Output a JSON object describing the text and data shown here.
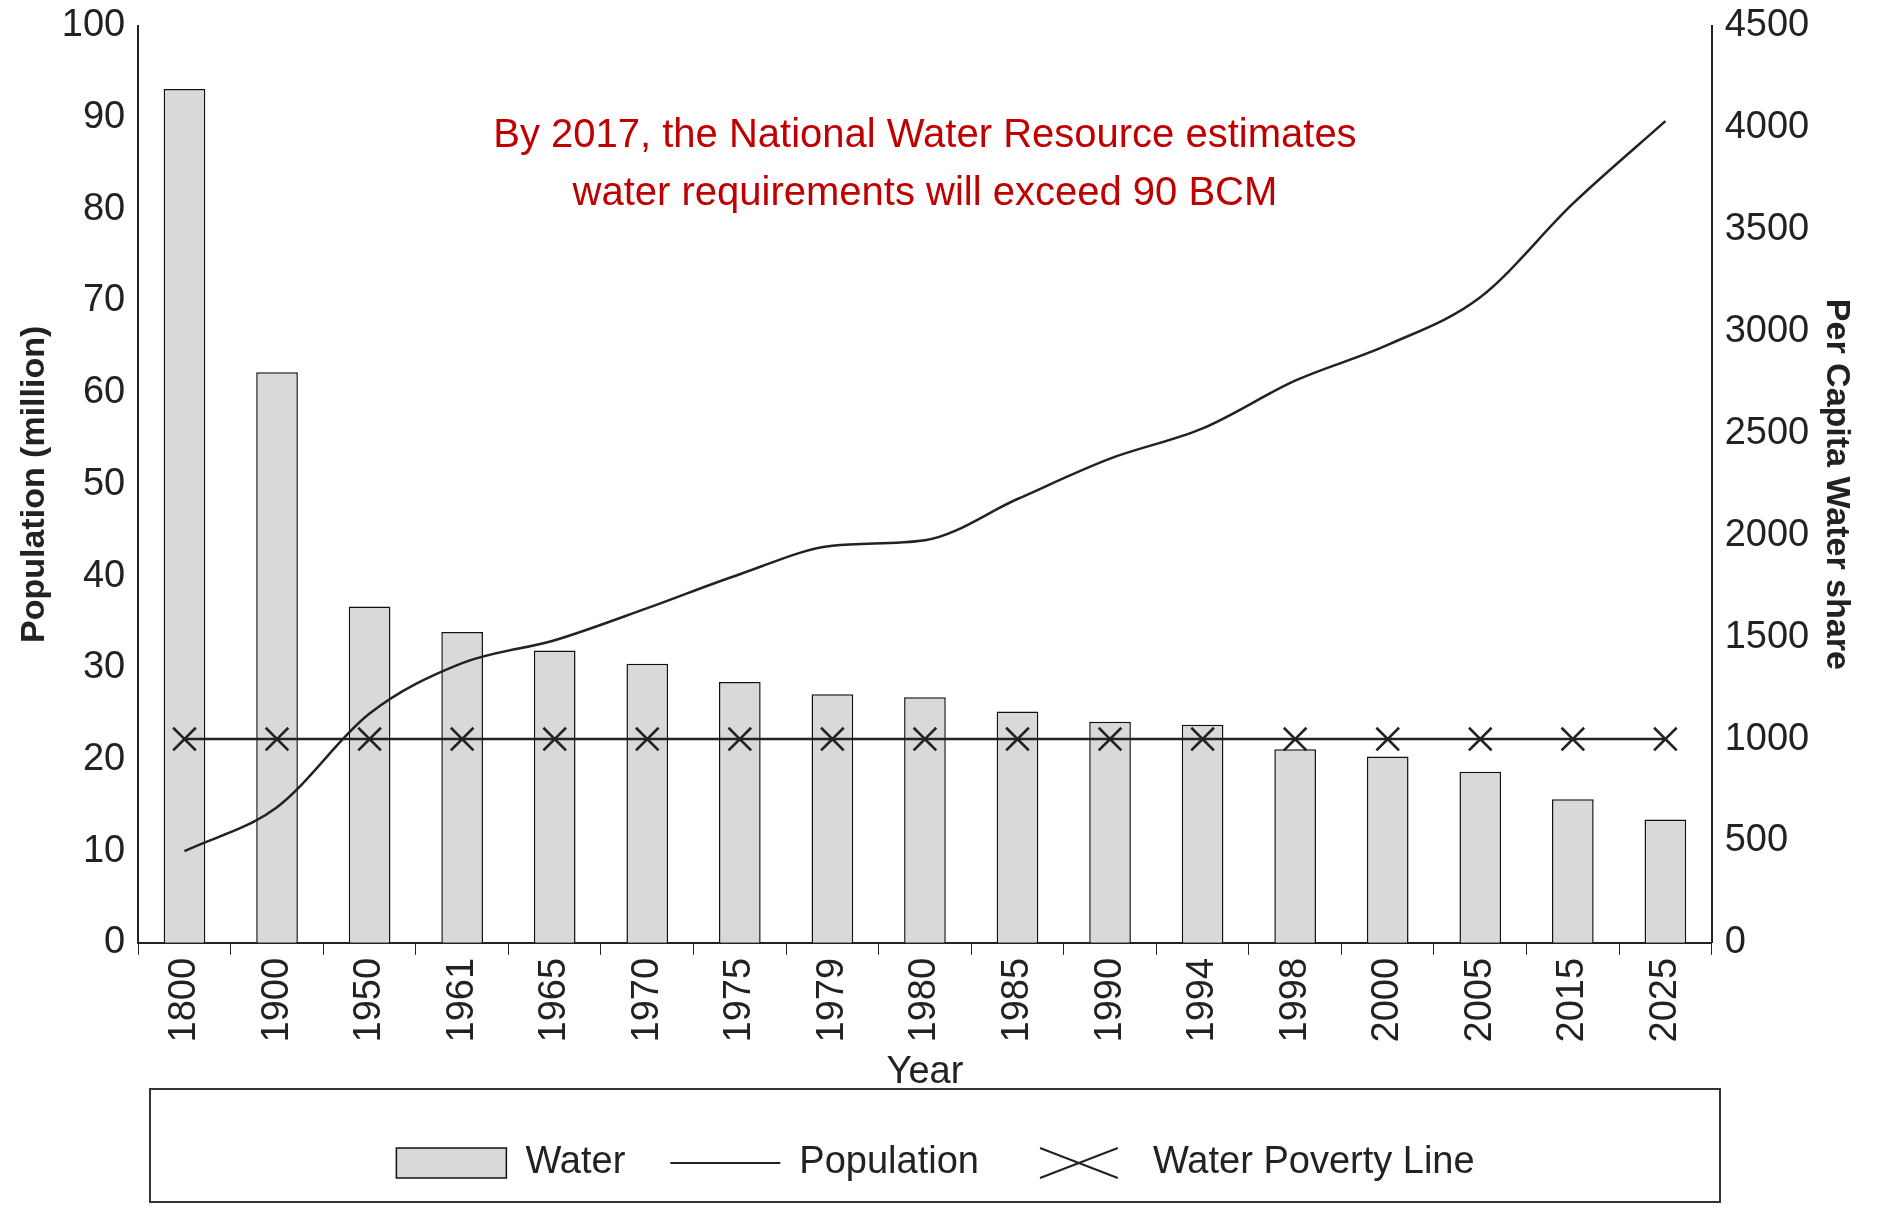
{
  "chart_data": {
    "type": "bar",
    "xlabel": "Year",
    "ylabel": "Population (million)",
    "y2label": "Per Capita Water share",
    "annotations": [
      "By 2017, the National Water Resource estimates water requirements will exceed 90 BCM"
    ],
    "categories": [
      "1800",
      "1900",
      "1950",
      "1961",
      "1965",
      "1970",
      "1975",
      "1979",
      "1980",
      "1985",
      "1990",
      "1994",
      "1998",
      "2000",
      "2005",
      "2015",
      "2025"
    ],
    "series": [
      {
        "name": "Water",
        "axis": "y2",
        "color": "#d9d9d9",
        "values": [
          4190,
          2800,
          1650,
          1525,
          1435,
          1370,
          1280,
          1220,
          1205,
          1135,
          1085,
          1070,
          950,
          915,
          840,
          705,
          605
        ]
      },
      {
        "name": "Population",
        "type": "line",
        "axis": "y",
        "color": "#222222",
        "marker": "none",
        "values": [
          10,
          14.8,
          25,
          30.5,
          33,
          36.5,
          40.2,
          43.3,
          43.9,
          48.4,
          52.8,
          56.1,
          61.3,
          65.2,
          70.4,
          80.6,
          89.6
        ]
      },
      {
        "name": "Water Poverty Line",
        "type": "line",
        "axis": "y2",
        "color": "#222222",
        "marker": "cross",
        "values": [
          1000,
          1000,
          1000,
          1000,
          1000,
          1000,
          1000,
          1000,
          1000,
          1000,
          1000,
          1000,
          1000,
          1000,
          1000,
          1000,
          1000
        ]
      }
    ],
    "ylim": [
      0,
      100
    ],
    "yticks": [
      0,
      10,
      20,
      30,
      40,
      50,
      60,
      70,
      80,
      90,
      100
    ],
    "y2lim": [
      0,
      4500
    ],
    "y2ticks": [
      0,
      500,
      1000,
      1500,
      2000,
      2500,
      3000,
      3500,
      4000,
      4500
    ],
    "grid": false,
    "legend": "bottom"
  }
}
